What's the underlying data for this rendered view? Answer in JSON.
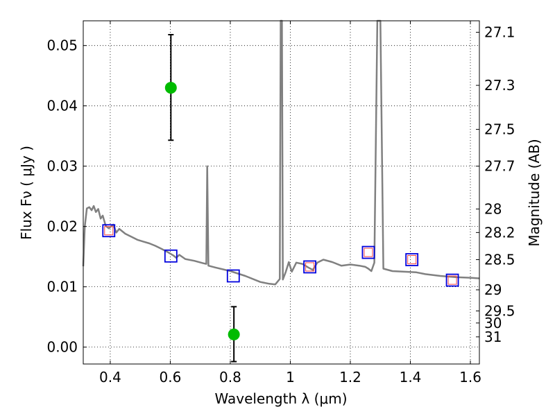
{
  "chart_data": {
    "type": "scatter",
    "xlabel": "Wavelength  λ (μm)",
    "ylabel": "Flux  Fν  ( μJy )",
    "y2label": "Magnitude (AB)",
    "xlim": [
      0.31,
      1.63
    ],
    "ylim": [
      -0.0028,
      0.0541
    ],
    "x_ticks": [
      0.4,
      0.6,
      0.8,
      1.0,
      1.2,
      1.4,
      1.6
    ],
    "x_tick_labels": [
      "0.4",
      "0.6",
      "0.8",
      "1",
      "1.2",
      "1.4",
      "1.6"
    ],
    "y_ticks": [
      0.0,
      0.01,
      0.02,
      0.03,
      0.04,
      0.05
    ],
    "y_tick_labels": [
      "0.00",
      "0.01",
      "0.02",
      "0.03",
      "0.04",
      "0.05"
    ],
    "grid": true,
    "magnitude_ticks": [
      {
        "label": "27.1",
        "flux": 0.0522
      },
      {
        "label": "27.3",
        "flux": 0.0434
      },
      {
        "label": "27.5",
        "flux": 0.0361
      },
      {
        "label": "27.7",
        "flux": 0.03
      },
      {
        "label": "28",
        "flux": 0.0229
      },
      {
        "label": "28.2",
        "flux": 0.019
      },
      {
        "label": "28.5",
        "flux": 0.0145
      },
      {
        "label": "29",
        "flux": 0.0095
      },
      {
        "label": "29.5",
        "flux": 0.006
      },
      {
        "label": "30",
        "flux": 0.004
      },
      {
        "label": "31",
        "flux": 0.0017
      }
    ],
    "series": [
      {
        "name": "model SED",
        "kind": "line",
        "color": "#808080",
        "points": [
          [
            0.31,
            0.0134
          ],
          [
            0.315,
            0.02
          ],
          [
            0.322,
            0.023
          ],
          [
            0.33,
            0.0232
          ],
          [
            0.338,
            0.0227
          ],
          [
            0.345,
            0.0234
          ],
          [
            0.352,
            0.0224
          ],
          [
            0.36,
            0.0229
          ],
          [
            0.368,
            0.0213
          ],
          [
            0.375,
            0.0218
          ],
          [
            0.385,
            0.0201
          ],
          [
            0.395,
            0.0197
          ],
          [
            0.41,
            0.0203
          ],
          [
            0.42,
            0.019
          ],
          [
            0.43,
            0.0196
          ],
          [
            0.45,
            0.0188
          ],
          [
            0.47,
            0.0183
          ],
          [
            0.49,
            0.0178
          ],
          [
            0.51,
            0.0175
          ],
          [
            0.53,
            0.0172
          ],
          [
            0.55,
            0.0168
          ],
          [
            0.57,
            0.0163
          ],
          [
            0.59,
            0.0158
          ],
          [
            0.61,
            0.0152
          ],
          [
            0.62,
            0.0148
          ],
          [
            0.63,
            0.0153
          ],
          [
            0.65,
            0.0146
          ],
          [
            0.68,
            0.0143
          ],
          [
            0.71,
            0.0139
          ],
          [
            0.72,
            0.0138
          ],
          [
            0.723,
            0.03
          ],
          [
            0.727,
            0.0135
          ],
          [
            0.75,
            0.0132
          ],
          [
            0.8,
            0.0126
          ],
          [
            0.85,
            0.0118
          ],
          [
            0.9,
            0.0108
          ],
          [
            0.93,
            0.0105
          ],
          [
            0.95,
            0.0104
          ],
          [
            0.965,
            0.0113
          ],
          [
            0.968,
            0.0541
          ],
          [
            0.972,
            0.0541
          ],
          [
            0.975,
            0.0112
          ],
          [
            0.985,
            0.0125
          ],
          [
            0.995,
            0.0141
          ],
          [
            1.005,
            0.0125
          ],
          [
            1.02,
            0.014
          ],
          [
            1.04,
            0.0138
          ],
          [
            1.06,
            0.0132
          ],
          [
            1.075,
            0.0128
          ],
          [
            1.09,
            0.014
          ],
          [
            1.11,
            0.0145
          ],
          [
            1.14,
            0.0141
          ],
          [
            1.17,
            0.0135
          ],
          [
            1.2,
            0.0137
          ],
          [
            1.23,
            0.0135
          ],
          [
            1.25,
            0.0133
          ],
          [
            1.26,
            0.013
          ],
          [
            1.27,
            0.0126
          ],
          [
            1.28,
            0.014
          ],
          [
            1.29,
            0.0541
          ],
          [
            1.3,
            0.0541
          ],
          [
            1.31,
            0.013
          ],
          [
            1.34,
            0.0126
          ],
          [
            1.38,
            0.0125
          ],
          [
            1.42,
            0.0124
          ],
          [
            1.45,
            0.0121
          ],
          [
            1.5,
            0.0118
          ],
          [
            1.55,
            0.0116
          ],
          [
            1.6,
            0.0115
          ],
          [
            1.63,
            0.0114
          ]
        ]
      },
      {
        "name": "model photometry",
        "kind": "marker",
        "marker": "square-open",
        "color": "#0000dd",
        "points": [
          [
            0.395,
            0.0193
          ],
          [
            0.602,
            0.0151
          ],
          [
            0.81,
            0.0118
          ],
          [
            1.065,
            0.0133
          ],
          [
            1.26,
            0.0157
          ],
          [
            1.405,
            0.0145
          ],
          [
            1.54,
            0.0111
          ]
        ]
      },
      {
        "name": "filter points",
        "kind": "marker",
        "marker": "square-small-open",
        "color": "#ff4444",
        "points": [
          [
            0.395,
            0.0193
          ],
          [
            1.065,
            0.0133
          ],
          [
            1.26,
            0.0157
          ],
          [
            1.405,
            0.0145
          ],
          [
            1.54,
            0.0111
          ]
        ]
      },
      {
        "name": "observed flux",
        "kind": "marker",
        "marker": "circle-filled",
        "color": "#00bb00",
        "points": [
          {
            "x": 0.602,
            "y": 0.043,
            "err_low": 0.0087,
            "err_high": 0.0088
          },
          {
            "x": 0.812,
            "y": 0.0021,
            "err_low": 0.0045,
            "err_high": 0.0046
          }
        ]
      }
    ]
  }
}
